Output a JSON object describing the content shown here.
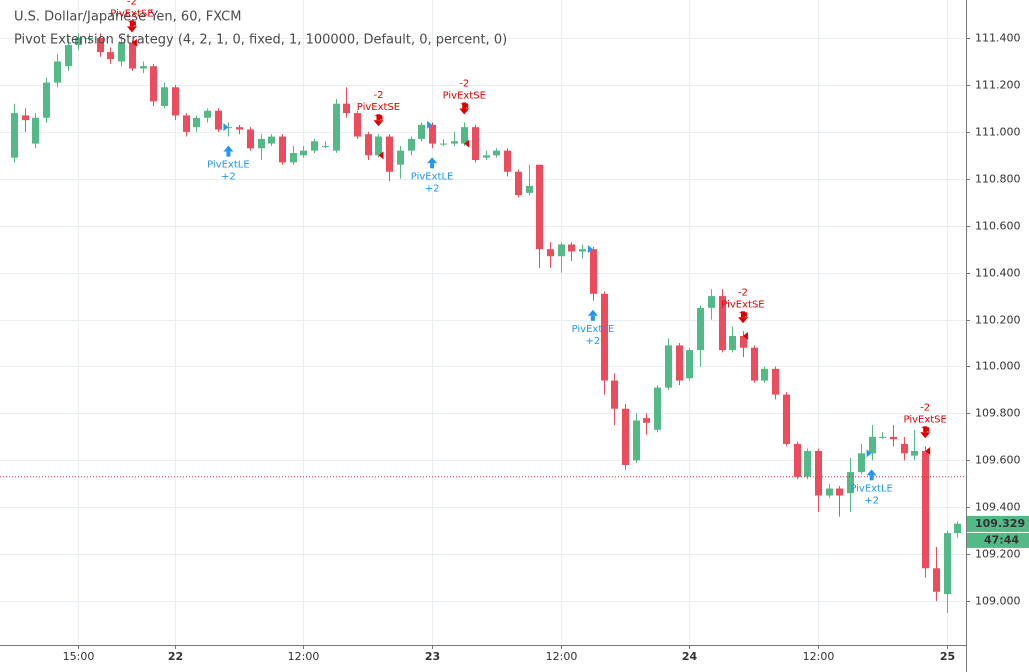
{
  "chart_data": {
    "type": "candlestick",
    "title": "U.S. Dollar/Japanese Yen, 60, FXCM",
    "subtitle": "Pivot Extension Strategy (4, 2, 1, 0, fixed, 1, 100000, Default, 0, percent, 0)",
    "categories": [
      null,
      null,
      null,
      null,
      null,
      null,
      "15:00",
      null,
      null,
      null,
      null,
      null,
      null,
      null,
      null,
      "22",
      null,
      null,
      null,
      null,
      null,
      null,
      null,
      null,
      null,
      null,
      null,
      "12:00",
      null,
      null,
      null,
      null,
      null,
      null,
      null,
      null,
      null,
      null,
      null,
      "23",
      null,
      null,
      null,
      null,
      null,
      null,
      null,
      null,
      null,
      null,
      null,
      "12:00",
      null,
      null,
      null,
      null,
      null,
      null,
      null,
      null,
      null,
      null,
      null,
      "24",
      null,
      null,
      null,
      null,
      null,
      null,
      null,
      null,
      null,
      null,
      null,
      "12:00",
      null,
      null,
      null,
      null,
      null,
      null,
      null,
      null,
      null,
      null,
      null,
      "25",
      null
    ],
    "open": [
      110.89,
      111.07,
      110.95,
      111.06,
      111.21,
      111.28,
      111.37,
      111.4,
      111.4,
      111.34,
      111.3,
      111.38,
      111.27,
      111.28,
      111.11,
      111.19,
      111.07,
      111.02,
      111.06,
      111.09,
      111.02,
      111.02,
      111.01,
      110.93,
      110.95,
      110.98,
      110.87,
      110.9,
      110.92,
      110.94,
      110.92,
      111.12,
      111.08,
      110.99,
      110.9,
      110.98,
      110.86,
      110.92,
      110.97,
      111.03,
      110.95,
      110.95,
      110.95,
      111.02,
      110.89,
      110.9,
      110.92,
      110.83,
      110.74,
      110.86,
      110.5,
      110.47,
      110.52,
      110.49,
      110.5,
      110.31,
      109.94,
      109.82,
      109.6,
      109.78,
      109.73,
      109.91,
      110.09,
      109.95,
      110.07,
      110.25,
      110.3,
      110.07,
      110.13,
      110.08,
      109.94,
      109.99,
      109.88,
      109.67,
      109.53,
      109.64,
      109.45,
      109.48,
      109.46,
      109.55,
      109.63,
      109.7,
      109.7,
      109.67,
      109.62,
      109.64,
      109.14,
      109.03,
      109.29
    ],
    "high": [
      111.12,
      111.1,
      111.08,
      111.23,
      111.33,
      111.4,
      111.42,
      111.42,
      111.42,
      111.36,
      111.41,
      111.39,
      111.3,
      111.29,
      111.21,
      111.2,
      111.08,
      111.07,
      111.1,
      111.1,
      111.04,
      111.03,
      111.02,
      110.99,
      110.99,
      110.99,
      110.94,
      110.94,
      110.97,
      110.96,
      111.14,
      111.19,
      111.09,
      111.0,
      110.99,
      110.99,
      110.94,
      110.98,
      111.04,
      111.04,
      110.97,
      111.0,
      111.04,
      111.03,
      110.92,
      110.93,
      110.93,
      110.84,
      110.86,
      110.86,
      110.53,
      110.53,
      110.53,
      110.52,
      110.51,
      110.32,
      109.97,
      109.84,
      109.8,
      109.8,
      109.92,
      110.12,
      110.1,
      110.08,
      110.26,
      110.33,
      110.33,
      110.17,
      110.15,
      110.09,
      110.0,
      110.0,
      109.89,
      109.68,
      109.65,
      109.65,
      109.5,
      109.49,
      109.61,
      109.67,
      109.75,
      109.72,
      109.75,
      109.7,
      109.73,
      109.66,
      109.23,
      109.3,
      109.34
    ],
    "low": [
      110.87,
      111.0,
      110.93,
      111.04,
      111.19,
      111.26,
      111.35,
      111.38,
      111.32,
      111.29,
      111.28,
      111.26,
      111.25,
      111.11,
      111.1,
      111.05,
      110.98,
      111.0,
      111.04,
      111.0,
      110.98,
      110.99,
      110.92,
      110.88,
      110.94,
      110.86,
      110.86,
      110.89,
      110.91,
      110.93,
      110.91,
      111.06,
      110.97,
      110.88,
      110.89,
      110.79,
      110.8,
      110.9,
      110.96,
      110.93,
      110.94,
      110.94,
      110.94,
      110.87,
      110.88,
      110.89,
      110.81,
      110.72,
      110.73,
      110.42,
      110.42,
      110.4,
      110.45,
      110.46,
      110.28,
      109.88,
      109.75,
      109.56,
      109.59,
      109.71,
      109.72,
      109.9,
      109.92,
      109.94,
      110.0,
      110.2,
      110.06,
      110.06,
      110.04,
      109.93,
      109.93,
      109.86,
      109.66,
      109.52,
      109.52,
      109.38,
      109.44,
      109.36,
      109.38,
      109.54,
      109.6,
      109.69,
      109.66,
      109.6,
      109.6,
      109.1,
      109.0,
      108.95,
      109.27
    ],
    "close": [
      111.08,
      111.05,
      111.06,
      111.21,
      111.3,
      111.37,
      111.4,
      111.4,
      111.34,
      111.31,
      111.38,
      111.27,
      111.28,
      111.13,
      111.19,
      111.07,
      111.0,
      111.06,
      111.09,
      111.01,
      111.02,
      111.01,
      110.93,
      110.97,
      110.98,
      110.87,
      110.91,
      110.92,
      110.96,
      110.94,
      111.12,
      111.08,
      110.98,
      110.9,
      110.98,
      110.83,
      110.92,
      110.97,
      111.03,
      110.95,
      110.95,
      110.96,
      111.02,
      110.88,
      110.9,
      110.92,
      110.83,
      110.73,
      110.77,
      110.5,
      110.47,
      110.52,
      110.49,
      110.5,
      110.31,
      109.94,
      109.82,
      109.58,
      109.77,
      109.76,
      109.91,
      110.09,
      109.94,
      110.07,
      110.25,
      110.3,
      110.07,
      110.13,
      110.08,
      109.94,
      109.99,
      109.88,
      109.67,
      109.53,
      109.64,
      109.45,
      109.48,
      109.45,
      109.55,
      109.63,
      109.7,
      109.7,
      109.69,
      109.63,
      109.64,
      109.14,
      109.04,
      109.29,
      109.33
    ],
    "up_color": "#53b987",
    "down_color": "#eb4d5c",
    "ylim": [
      108.813,
      111.562
    ],
    "yticks": [
      {
        "value": 109.0,
        "label": "109.000"
      },
      {
        "value": 109.2,
        "label": "109.200"
      },
      {
        "value": 109.4,
        "label": "109.400"
      },
      {
        "value": 109.6,
        "label": "109.600"
      },
      {
        "value": 109.8,
        "label": "109.800"
      },
      {
        "value": 110.0,
        "label": "110.000"
      },
      {
        "value": 110.2,
        "label": "110.200"
      },
      {
        "value": 110.4,
        "label": "110.400"
      },
      {
        "value": 110.6,
        "label": "110.600"
      },
      {
        "value": 110.8,
        "label": "110.800"
      },
      {
        "value": 111.0,
        "label": "111.000"
      },
      {
        "value": 111.2,
        "label": "111.200"
      },
      {
        "value": 111.4,
        "label": "111.400"
      }
    ],
    "grid": true,
    "position_line": 109.53,
    "last_price": {
      "value": 109.329,
      "label": "109.329"
    },
    "countdown": "47:44",
    "signals": [
      {
        "label": "PivExtSE",
        "qty": "-2",
        "bar": 11
      },
      {
        "label": "PivExtLE",
        "qty": "+2",
        "bar": 20
      },
      {
        "label": "PivExtSE",
        "qty": "-2",
        "bar": 34
      },
      {
        "label": "PivExtLE",
        "qty": "+2",
        "bar": 39
      },
      {
        "label": "PivExtSE",
        "qty": "-2",
        "bar": 42
      },
      {
        "label": "PivExtLE",
        "qty": "+2",
        "bar": 54
      },
      {
        "label": "PivExtSE",
        "qty": "-2",
        "bar": 68
      },
      {
        "label": "PivExtLE",
        "qty": "+2",
        "bar": 80
      },
      {
        "label": "PivExtSE",
        "qty": "-2",
        "bar": 85
      }
    ]
  }
}
